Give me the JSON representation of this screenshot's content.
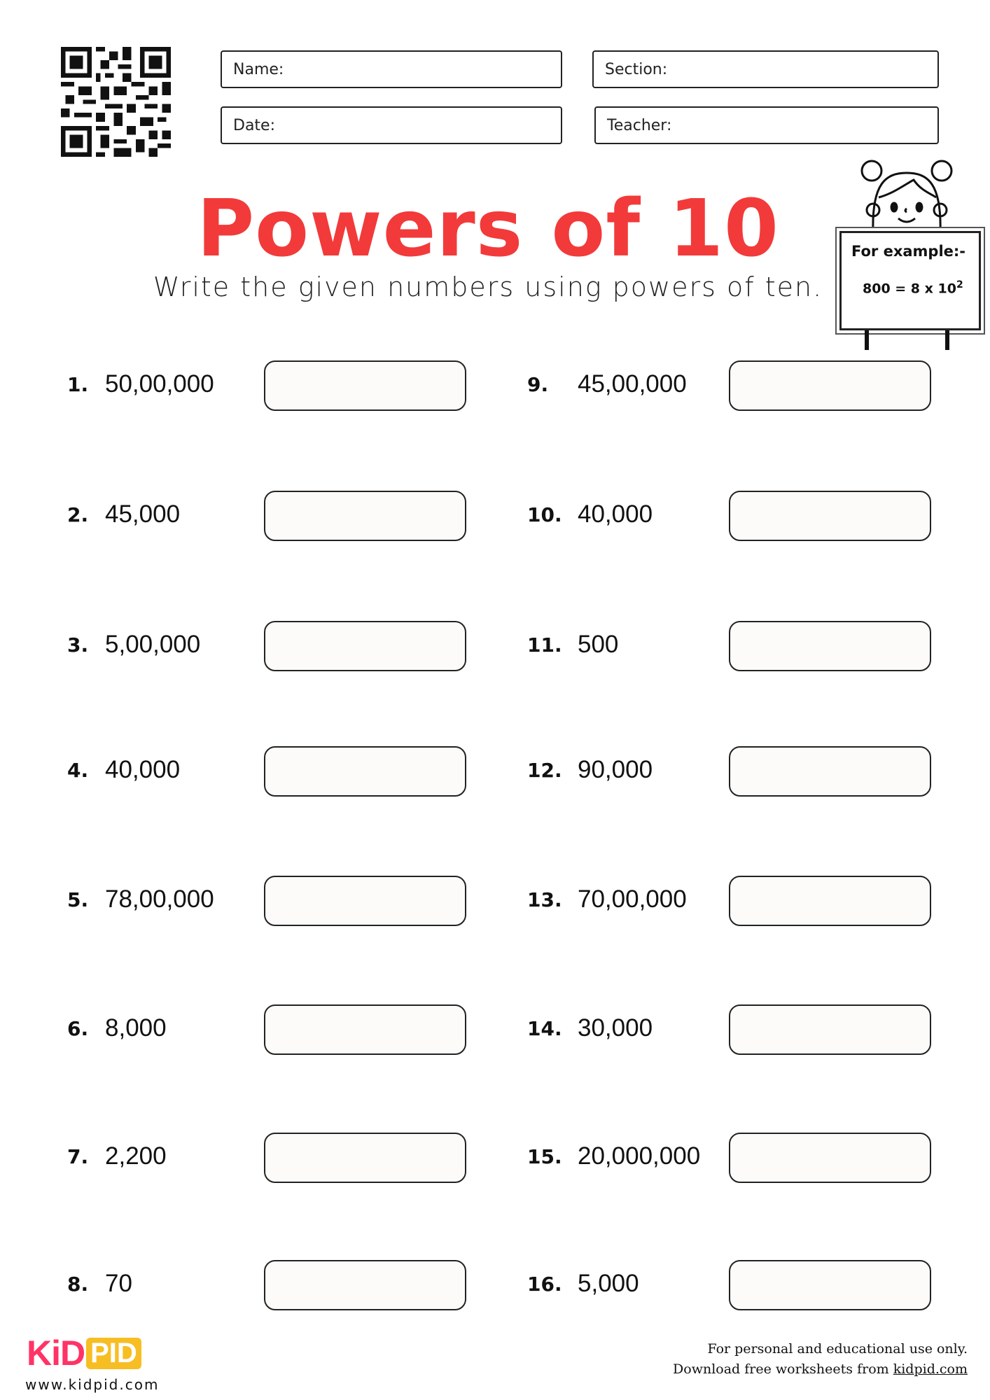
{
  "header": {
    "fields": {
      "name": "Name:",
      "section": "Section:",
      "date": "Date:",
      "teacher": "Teacher:"
    }
  },
  "title": "Powers of 10",
  "subtitle": "Write the given numbers using powers of ten.",
  "example": {
    "title": "For example:-",
    "equation": "800 = 8 x 10",
    "exponent": "2"
  },
  "questions_left": [
    {
      "num": "1.",
      "value": "50,00,000"
    },
    {
      "num": "2.",
      "value": "45,000"
    },
    {
      "num": "3.",
      "value": "5,00,000"
    },
    {
      "num": "4.",
      "value": "40,000"
    },
    {
      "num": "5.",
      "value": "78,00,000"
    },
    {
      "num": "6.",
      "value": "8,000"
    },
    {
      "num": "7.",
      "value": "2,200"
    },
    {
      "num": "8.",
      "value": "70"
    }
  ],
  "questions_right": [
    {
      "num": "9.",
      "value": "45,00,000"
    },
    {
      "num": "10.",
      "value": "40,000"
    },
    {
      "num": "11.",
      "value": "500"
    },
    {
      "num": "12.",
      "value": "90,000"
    },
    {
      "num": "13.",
      "value": "70,00,000"
    },
    {
      "num": "14.",
      "value": "30,000"
    },
    {
      "num": "15.",
      "value": "20,000,000"
    },
    {
      "num": "16.",
      "value": "5,000"
    }
  ],
  "footer": {
    "logo_kid": "KiD",
    "logo_pid": "PID",
    "website": "www.kidpid.com",
    "note_line1": "For personal and educational use only.",
    "note_line2": "Download free worksheets from",
    "link": "kidpid.com"
  },
  "colors": {
    "title": "#f23a3a",
    "logo_pink": "#ff3366",
    "logo_yellow": "#f7be23"
  }
}
